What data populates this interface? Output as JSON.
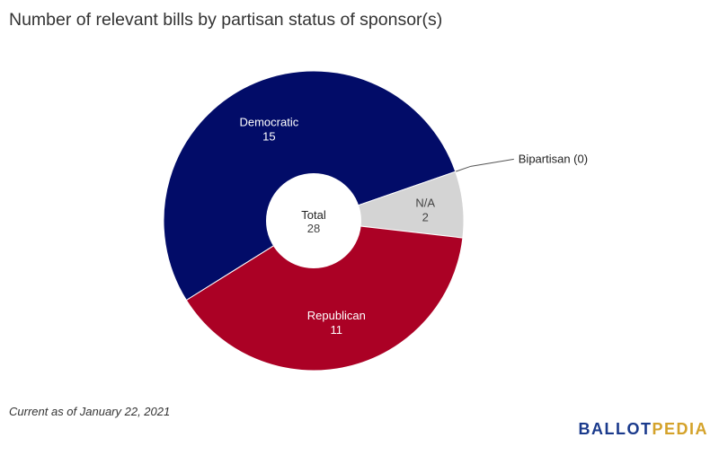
{
  "title": "Number of relevant bills by partisan status of sponsor(s)",
  "footnote": "Current as of January 22, 2021",
  "brand": {
    "part1": "BALLOT",
    "part2": "PEDIA",
    "color1": "#1a3a8c",
    "color2": "#d4a22a"
  },
  "chart_data": {
    "type": "pie",
    "donut": true,
    "center_label": "Total",
    "center_value": "28",
    "slices": [
      {
        "name": "Democratic",
        "value": 15,
        "color": "#020c68",
        "label_color": "#ffffff"
      },
      {
        "name": "Bipartisan",
        "value": 0,
        "display": "Bipartisan (0)",
        "color": "#ffffff",
        "label_color": "#222222"
      },
      {
        "name": "N/A",
        "value": 2,
        "color": "#d4d4d4",
        "label_color": "#444444"
      },
      {
        "name": "Republican",
        "value": 11,
        "color": "#ab0125",
        "label_color": "#ffffff"
      }
    ]
  }
}
